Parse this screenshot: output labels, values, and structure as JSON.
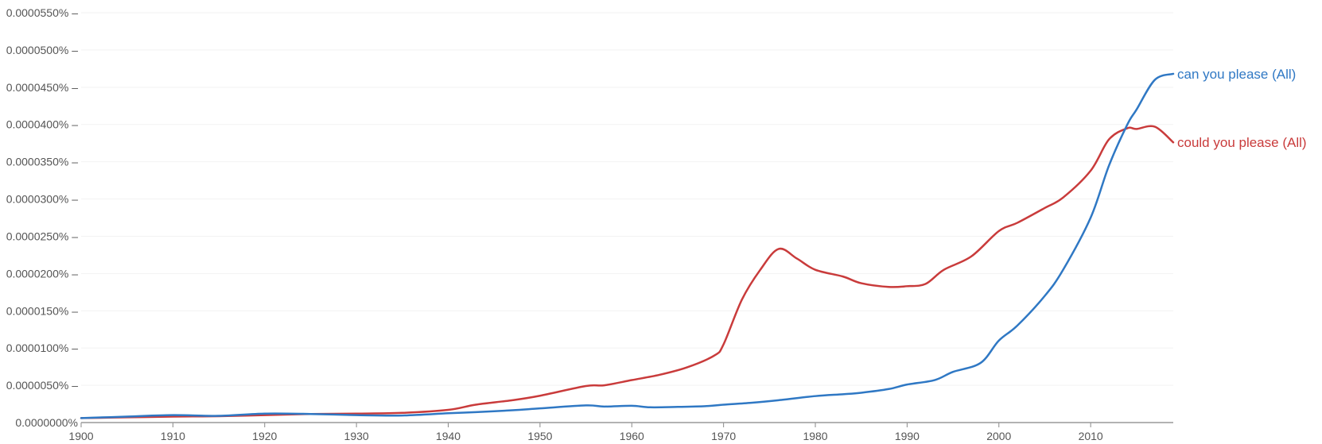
{
  "chart_data": {
    "type": "line",
    "title": "",
    "xlabel": "",
    "ylabel": "",
    "xlim": [
      1900,
      2019
    ],
    "ylim": [
      0,
      5.5e-07
    ],
    "grid": true,
    "legend": "inline labels at right end of each line",
    "x_ticks": [
      {
        "value": 1900,
        "label": "1900"
      },
      {
        "value": 1910,
        "label": "1910"
      },
      {
        "value": 1920,
        "label": "1920"
      },
      {
        "value": 1930,
        "label": "1930"
      },
      {
        "value": 1940,
        "label": "1940"
      },
      {
        "value": 1950,
        "label": "1950"
      },
      {
        "value": 1960,
        "label": "1960"
      },
      {
        "value": 1970,
        "label": "1970"
      },
      {
        "value": 1980,
        "label": "1980"
      },
      {
        "value": 1990,
        "label": "1990"
      },
      {
        "value": 2000,
        "label": "2000"
      },
      {
        "value": 2010,
        "label": "2010"
      }
    ],
    "y_ticks": [
      {
        "value": 0.0,
        "label": "0.0000000%"
      },
      {
        "value": 5e-08,
        "label": "0.0000050% –"
      },
      {
        "value": 1e-07,
        "label": "0.0000100% –"
      },
      {
        "value": 1.5e-07,
        "label": "0.0000150% –"
      },
      {
        "value": 2e-07,
        "label": "0.0000200% –"
      },
      {
        "value": 2.5e-07,
        "label": "0.0000250% –"
      },
      {
        "value": 3e-07,
        "label": "0.0000300% –"
      },
      {
        "value": 3.5e-07,
        "label": "0.0000350% –"
      },
      {
        "value": 4e-07,
        "label": "0.0000400% –"
      },
      {
        "value": 4.5e-07,
        "label": "0.0000450% –"
      },
      {
        "value": 5e-07,
        "label": "0.0000500% –"
      },
      {
        "value": 5.5e-07,
        "label": "0.0000550% –"
      }
    ],
    "series": [
      {
        "name": "can you please (All)",
        "color": "#2f78c4",
        "x": [
          1900,
          1905,
          1910,
          1915,
          1920,
          1925,
          1930,
          1935,
          1940,
          1943,
          1947,
          1950,
          1955,
          1957,
          1960,
          1962,
          1965,
          1968,
          1970,
          1973,
          1976,
          1980,
          1983,
          1985,
          1988,
          1990,
          1993,
          1995,
          1998,
          2000,
          2002,
          2005,
          2007,
          2010,
          2012,
          2014,
          2015,
          2017,
          2019
        ],
        "y": [
          6e-09,
          8e-09,
          1e-08,
          9e-09,
          1.2e-08,
          1.15e-08,
          1e-08,
          9.5e-09,
          1.25e-08,
          1.4e-08,
          1.65e-08,
          1.9e-08,
          2.3e-08,
          2.15e-08,
          2.25e-08,
          2.05e-08,
          2.1e-08,
          2.2e-08,
          2.4e-08,
          2.65e-08,
          3e-08,
          3.55e-08,
          3.8e-08,
          4e-08,
          4.5e-08,
          5.1e-08,
          5.7e-08,
          6.8e-08,
          8e-08,
          1.1e-07,
          1.3e-07,
          1.7e-07,
          2.05e-07,
          2.75e-07,
          3.45e-07,
          4e-07,
          4.2e-07,
          4.6e-07,
          4.68e-07
        ]
      },
      {
        "name": "could you please (All)",
        "color": "#c93b3b",
        "x": [
          1900,
          1905,
          1910,
          1915,
          1920,
          1925,
          1930,
          1935,
          1940,
          1943,
          1947,
          1950,
          1955,
          1957,
          1960,
          1963,
          1966,
          1969,
          1970,
          1972,
          1974,
          1976,
          1978,
          1980,
          1983,
          1985,
          1988,
          1990,
          1992,
          1994,
          1997,
          2000,
          2002,
          2005,
          2007,
          2010,
          2012,
          2014,
          2015,
          2017,
          2019
        ],
        "y": [
          6e-09,
          7e-09,
          8e-09,
          8.5e-09,
          1e-08,
          1.15e-08,
          1.2e-08,
          1.3e-08,
          1.7e-08,
          2.4e-08,
          3e-08,
          3.6e-08,
          4.9e-08,
          5e-08,
          5.7e-08,
          6.4e-08,
          7.4e-08,
          9e-08,
          1.05e-07,
          1.65e-07,
          2.05e-07,
          2.33e-07,
          2.2e-07,
          2.05e-07,
          1.96e-07,
          1.87e-07,
          1.82e-07,
          1.83e-07,
          1.86e-07,
          2.05e-07,
          2.23e-07,
          2.57e-07,
          2.68e-07,
          2.88e-07,
          3.02e-07,
          3.38e-07,
          3.8e-07,
          3.95e-07,
          3.94e-07,
          3.97e-07,
          3.76e-07
        ]
      }
    ]
  }
}
